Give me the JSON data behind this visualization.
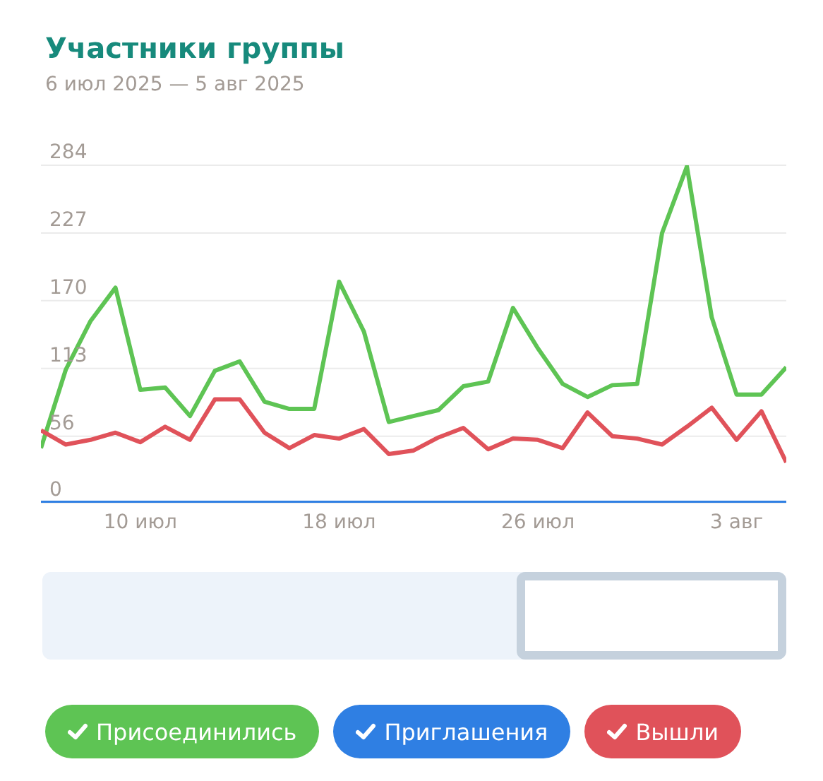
{
  "chart_data": {
    "type": "line",
    "title": "Участники группы",
    "subtitle": "6 июл 2025 — 5 авг 2025",
    "x": [
      "2025-07-06",
      "2025-07-07",
      "2025-07-08",
      "2025-07-09",
      "2025-07-10",
      "2025-07-11",
      "2025-07-12",
      "2025-07-13",
      "2025-07-14",
      "2025-07-15",
      "2025-07-16",
      "2025-07-17",
      "2025-07-18",
      "2025-07-19",
      "2025-07-20",
      "2025-07-21",
      "2025-07-22",
      "2025-07-23",
      "2025-07-24",
      "2025-07-25",
      "2025-07-26",
      "2025-07-27",
      "2025-07-28",
      "2025-07-29",
      "2025-07-30",
      "2025-07-31",
      "2025-08-01",
      "2025-08-02",
      "2025-08-03",
      "2025-08-04",
      "2025-08-05"
    ],
    "series": [
      {
        "name": "Присоединились",
        "color": "#5ec454",
        "values": [
          46,
          112,
          153,
          181,
          95,
          97,
          73,
          111,
          119,
          85,
          79,
          79,
          186,
          144,
          68,
          73,
          78,
          98,
          102,
          164,
          130,
          100,
          89,
          99,
          100,
          227,
          283,
          156,
          91,
          91,
          114
        ]
      },
      {
        "name": "Приглашения",
        "color": "#2f7fe3",
        "values": [
          0,
          0,
          0,
          0,
          0,
          0,
          0,
          0,
          0,
          0,
          0,
          0,
          0,
          0,
          0,
          0,
          0,
          0,
          0,
          0,
          0,
          0,
          0,
          0,
          0,
          0,
          0,
          0,
          0,
          0,
          0
        ]
      },
      {
        "name": "Вышли",
        "color": "#e0525a",
        "values": [
          61,
          49,
          53,
          59,
          51,
          64,
          53,
          87,
          87,
          59,
          46,
          57,
          54,
          62,
          41,
          44,
          55,
          63,
          45,
          54,
          53,
          46,
          76,
          56,
          54,
          49,
          64,
          80,
          53,
          77,
          34
        ]
      }
    ],
    "xlim": [
      "2025-07-06",
      "2025-08-05"
    ],
    "xticks": [
      {
        "value": "2025-07-10",
        "label": "10 июл"
      },
      {
        "value": "2025-07-18",
        "label": "18 июл"
      },
      {
        "value": "2025-07-26",
        "label": "26 июл"
      },
      {
        "value": "2025-08-03",
        "label": "3 авг"
      }
    ],
    "ylim": [
      0,
      284
    ],
    "yticks": [
      0,
      56,
      113,
      170,
      227,
      284
    ],
    "grid": "y",
    "legend": "bottom",
    "marker": "none",
    "line_style": "solid"
  }
}
